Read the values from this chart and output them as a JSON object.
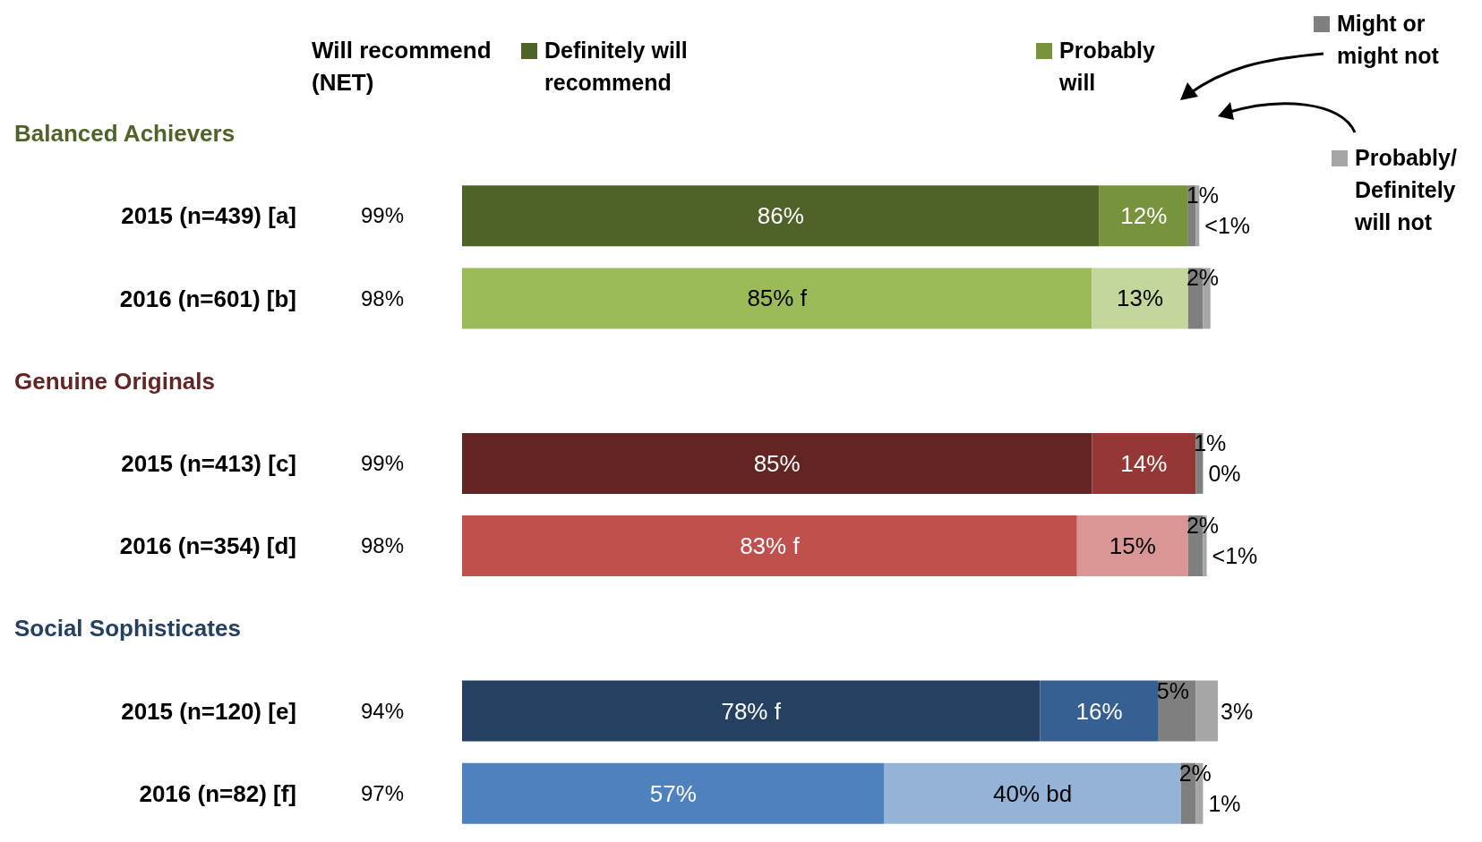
{
  "chart_data": {
    "type": "bar",
    "orientation": "horizontal",
    "stacked": true,
    "tick_labels": "y",
    "legend": "top",
    "categories": [
      null,
      "2015 (n=439) [a]",
      "2016 (n=601) [b]",
      null,
      "2015 (n=413) [c]",
      "2016 (n=354) [d]",
      null,
      "2015 (n=120) [e]",
      "2016 (n=82) [f]"
    ],
    "annotations": [
      "Will recommend (NET)",
      "Balanced Achievers",
      "99%",
      "98%",
      "Genuine Originals",
      "99%",
      "98%",
      "Social Sophisticates",
      "94%",
      "97%"
    ],
    "series": [
      {
        "name": "Definitely will recommend",
        "values": [
          null,
          86,
          85,
          null,
          85,
          83,
          null,
          78,
          57
        ],
        "colors": [
          null,
          "#4f6228",
          "#9bbb59",
          null,
          "#632523",
          "#c0504d",
          null,
          "#254061",
          "#4f81bd"
        ],
        "value_labels": [
          null,
          "86%",
          "85% f",
          null,
          "85%",
          "83% f",
          null,
          "78% f",
          "57%"
        ]
      },
      {
        "name": "Probably will",
        "values": [
          null,
          12,
          13,
          null,
          14,
          15,
          null,
          16,
          40
        ],
        "colors": [
          null,
          "#77933c",
          "#c3d69b",
          null,
          "#953735",
          "#d99694",
          null,
          "#376092",
          "#95b3d7"
        ],
        "value_labels": [
          null,
          "12%",
          "13%",
          null,
          "14%",
          "15%",
          null,
          "16%",
          "40% bd"
        ]
      },
      {
        "name": "Might or might not",
        "values": [
          null,
          1,
          2,
          null,
          1,
          2,
          null,
          5,
          2
        ],
        "colors": [
          null,
          "#7f7f7f",
          "#7f7f7f",
          null,
          "#7f7f7f",
          "#7f7f7f",
          null,
          "#7f7f7f",
          "#7f7f7f"
        ],
        "value_labels": [
          null,
          "1%",
          "2%",
          null,
          "1%",
          "2%",
          null,
          "5%",
          "2%"
        ]
      },
      {
        "name": "Probably/ Definitely will not",
        "values": [
          null,
          0.5,
          1,
          null,
          0,
          0.5,
          null,
          3,
          1
        ],
        "colors": [
          null,
          "#a6a6a6",
          "#a6a6a6",
          null,
          "#a6a6a6",
          "#a6a6a6",
          null,
          "#a6a6a6",
          "#a6a6a6"
        ],
        "value_labels": [
          null,
          "<1%",
          null,
          null,
          "0%",
          "<1%",
          null,
          "3%",
          "1%"
        ]
      }
    ]
  }
}
